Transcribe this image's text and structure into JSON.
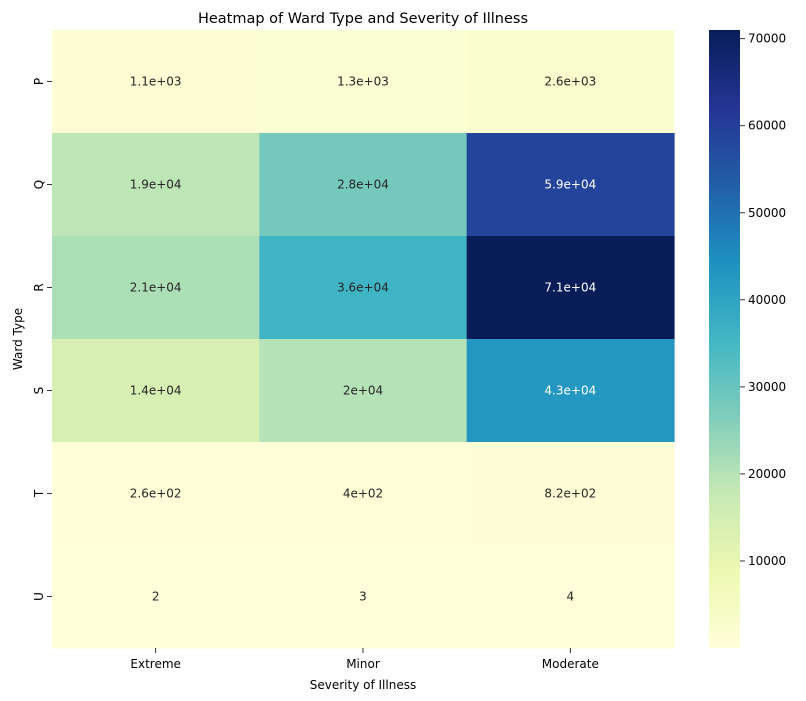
{
  "chart_data": {
    "type": "heatmap",
    "title": "Heatmap of Ward Type and Severity of Illness",
    "xlabel": "Severity of Illness",
    "ylabel": "Ward Type",
    "x_categories": [
      "Extreme",
      "Minor",
      "Moderate"
    ],
    "y_categories": [
      "P",
      "Q",
      "R",
      "S",
      "T",
      "U"
    ],
    "values": [
      [
        1100,
        1300,
        2600
      ],
      [
        19000,
        28000,
        59000
      ],
      [
        21000,
        36000,
        71000
      ],
      [
        14000,
        20000,
        43000
      ],
      [
        260,
        400,
        820
      ],
      [
        2,
        3,
        4
      ]
    ],
    "annotations": [
      [
        "1.1e+03",
        "1.3e+03",
        "2.6e+03"
      ],
      [
        "1.9e+04",
        "2.8e+04",
        "5.9e+04"
      ],
      [
        "2.1e+04",
        "3.6e+04",
        "7.1e+04"
      ],
      [
        "1.4e+04",
        "2e+04",
        "4.3e+04"
      ],
      [
        "2.6e+02",
        "4e+02",
        "8.2e+02"
      ],
      [
        "2",
        "3",
        "4"
      ]
    ],
    "colormap": "YlGnBu",
    "vmin": 2,
    "vmax": 71000,
    "colorbar_ticks": [
      10000,
      20000,
      30000,
      40000,
      50000,
      60000,
      70000
    ],
    "colorbar_tick_labels": [
      "10000",
      "20000",
      "30000",
      "40000",
      "50000",
      "60000",
      "70000"
    ]
  }
}
